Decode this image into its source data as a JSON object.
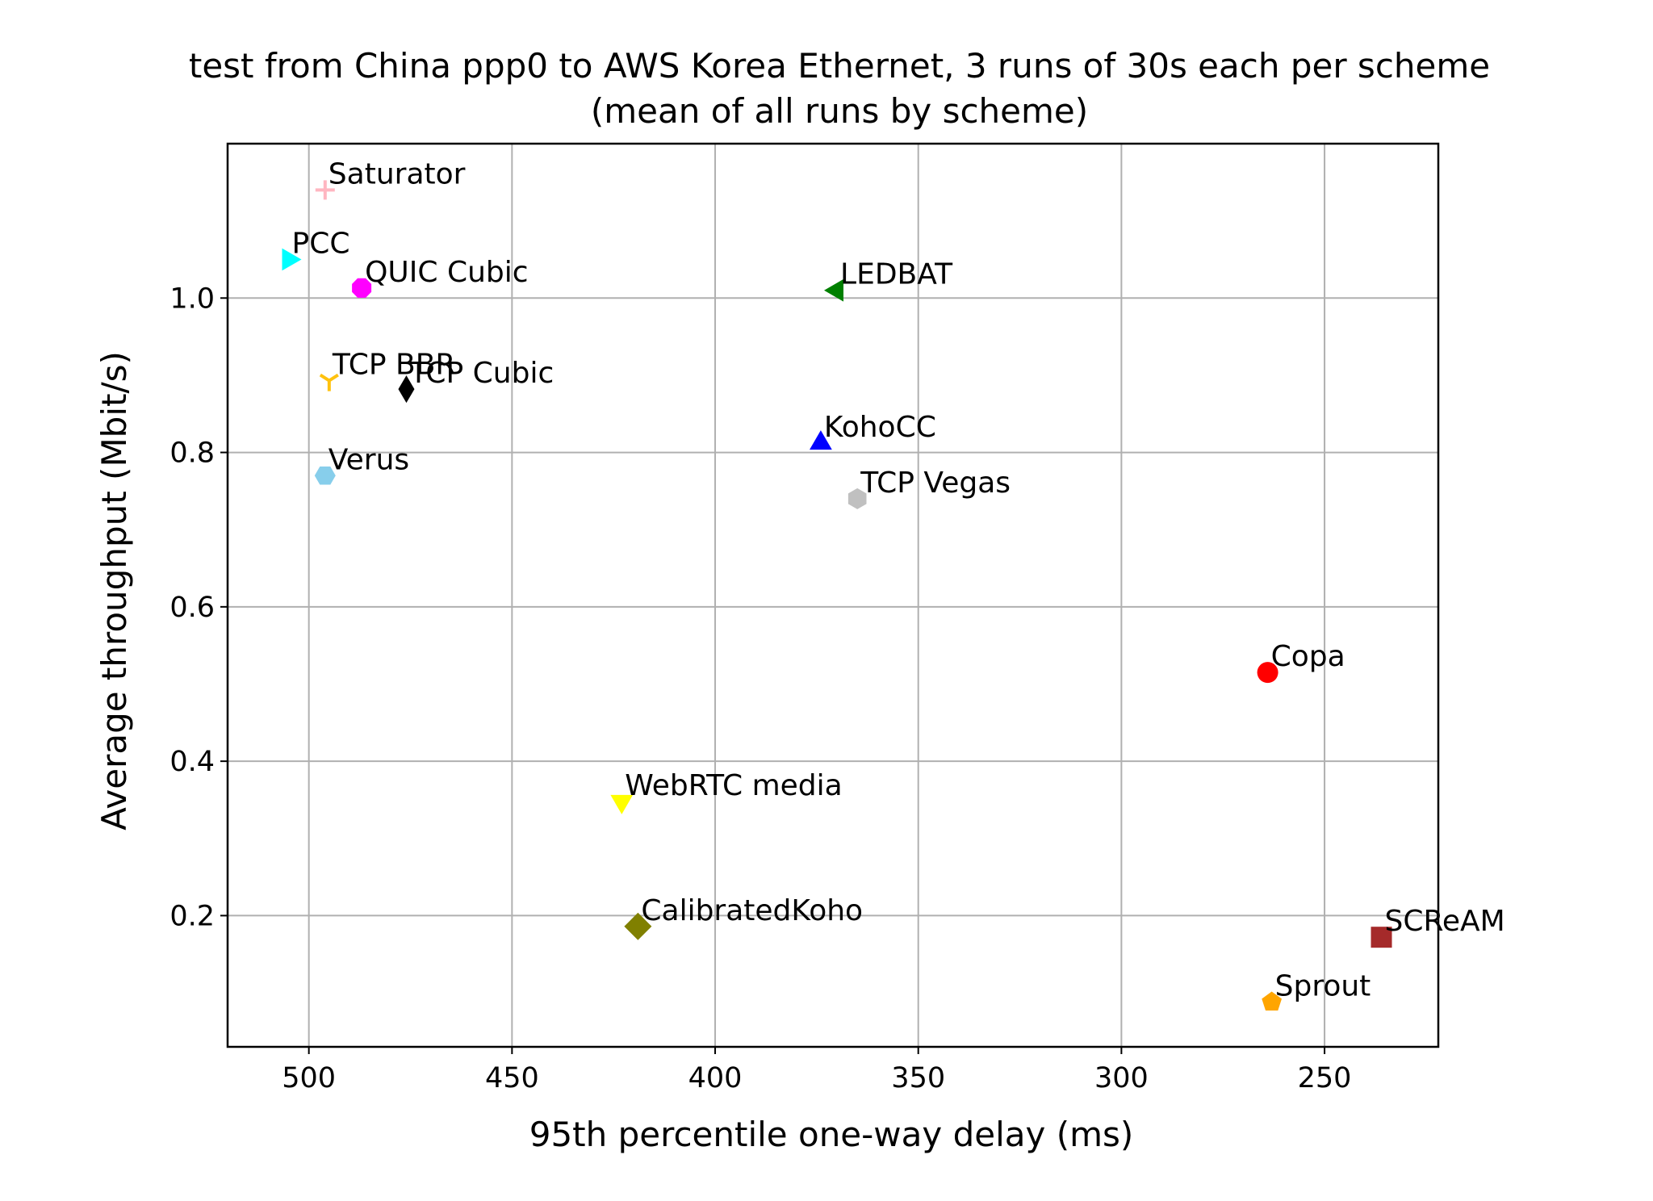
{
  "chart_data": {
    "type": "scatter",
    "title": "test from China ppp0 to AWS Korea Ethernet, 3 runs of 30s each per scheme",
    "subtitle": "(mean of all runs by scheme)",
    "xlabel": "95th percentile one-way delay (ms)",
    "ylabel": "Average throughput (Mbit/s)",
    "x_inverted": true,
    "xlim": [
      520,
      222
    ],
    "ylim": [
      0.03,
      1.2
    ],
    "x_ticks": [
      500,
      450,
      400,
      350,
      300,
      250
    ],
    "x_tick_labels": [
      "500",
      "450",
      "400",
      "350",
      "300",
      "250"
    ],
    "y_ticks": [
      0.2,
      0.4,
      0.6,
      0.8,
      1.0
    ],
    "y_tick_labels": [
      "0.2",
      "0.4",
      "0.6",
      "0.8",
      "1.0"
    ],
    "grid": true,
    "points": [
      {
        "name": "Saturator",
        "x": 496,
        "y": 1.14,
        "color": "#ffb6c1",
        "marker": "plus"
      },
      {
        "name": "PCC",
        "x": 505,
        "y": 1.05,
        "color": "#00ffff",
        "marker": "triangle-right"
      },
      {
        "name": "QUIC Cubic",
        "x": 487,
        "y": 1.013,
        "color": "#ff00ff",
        "marker": "octagon"
      },
      {
        "name": "LEDBAT",
        "x": 370,
        "y": 1.01,
        "color": "#008000",
        "marker": "triangle-left"
      },
      {
        "name": "TCP BBR",
        "x": 495,
        "y": 0.893,
        "color": "#ffc20e",
        "marker": "tri-down"
      },
      {
        "name": "TCP Cubic",
        "x": 476,
        "y": 0.882,
        "color": "#000000",
        "marker": "thin-diamond"
      },
      {
        "name": "KohoCC",
        "x": 374,
        "y": 0.812,
        "color": "#0000ff",
        "marker": "triangle-up"
      },
      {
        "name": "Verus",
        "x": 496,
        "y": 0.77,
        "color": "#87ceeb",
        "marker": "hexagon"
      },
      {
        "name": "TCP Vegas",
        "x": 365,
        "y": 0.74,
        "color": "#c0c0c0",
        "marker": "hexagon-pointy"
      },
      {
        "name": "Copa",
        "x": 264,
        "y": 0.515,
        "color": "#ff0000",
        "marker": "circle"
      },
      {
        "name": "WebRTC media",
        "x": 423,
        "y": 0.348,
        "color": "#ffff00",
        "marker": "triangle-down"
      },
      {
        "name": "CalibratedKoho",
        "x": 419,
        "y": 0.186,
        "color": "#808000",
        "marker": "diamond"
      },
      {
        "name": "SCReAM",
        "x": 236,
        "y": 0.172,
        "color": "#a52a2a",
        "marker": "square"
      },
      {
        "name": "Sprout",
        "x": 263,
        "y": 0.088,
        "color": "#ffa500",
        "marker": "pentagon"
      }
    ]
  }
}
